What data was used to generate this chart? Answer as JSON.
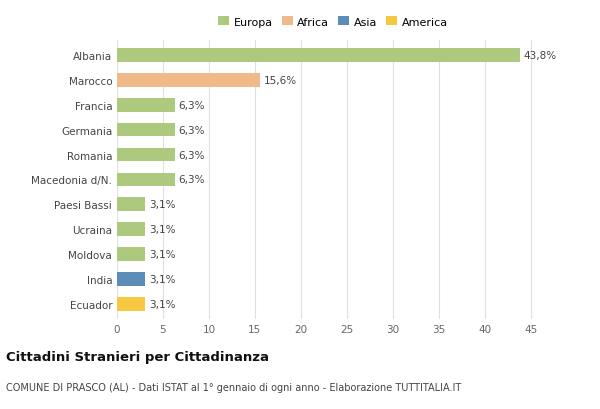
{
  "categories": [
    "Albania",
    "Marocco",
    "Francia",
    "Germania",
    "Romania",
    "Macedonia d/N.",
    "Paesi Bassi",
    "Ucraina",
    "Moldova",
    "India",
    "Ecuador"
  ],
  "values": [
    43.8,
    15.6,
    6.3,
    6.3,
    6.3,
    6.3,
    3.1,
    3.1,
    3.1,
    3.1,
    3.1
  ],
  "labels": [
    "43,8%",
    "15,6%",
    "6,3%",
    "6,3%",
    "6,3%",
    "6,3%",
    "3,1%",
    "3,1%",
    "3,1%",
    "3,1%",
    "3,1%"
  ],
  "colors": [
    "#adc97e",
    "#f0b989",
    "#adc97e",
    "#adc97e",
    "#adc97e",
    "#adc97e",
    "#adc97e",
    "#adc97e",
    "#adc97e",
    "#5b8db8",
    "#f5c842"
  ],
  "legend_labels": [
    "Europa",
    "Africa",
    "Asia",
    "America"
  ],
  "legend_colors": [
    "#adc97e",
    "#f0b989",
    "#5b8db8",
    "#f5c842"
  ],
  "title": "Cittadini Stranieri per Cittadinanza",
  "subtitle": "COMUNE DI PRASCO (AL) - Dati ISTAT al 1° gennaio di ogni anno - Elaborazione TUTTITALIA.IT",
  "xlim": [
    0,
    47
  ],
  "xticks": [
    0,
    5,
    10,
    15,
    20,
    25,
    30,
    35,
    40,
    45
  ],
  "background_color": "#ffffff",
  "grid_color": "#e0e0e0",
  "bar_height": 0.55,
  "title_fontsize": 9.5,
  "subtitle_fontsize": 7,
  "label_fontsize": 7.5,
  "tick_fontsize": 7.5,
  "legend_fontsize": 8
}
